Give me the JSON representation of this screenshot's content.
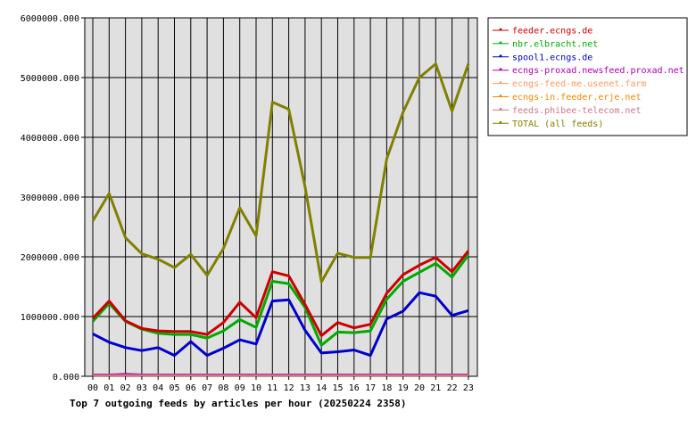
{
  "chart_data": {
    "type": "line",
    "title": "Top 7 outgoing feeds by articles per hour (20250224 2358)",
    "xlabel": "",
    "ylabel": "",
    "categories": [
      "00",
      "01",
      "02",
      "03",
      "04",
      "05",
      "06",
      "07",
      "08",
      "09",
      "10",
      "11",
      "12",
      "13",
      "14",
      "15",
      "16",
      "17",
      "18",
      "19",
      "20",
      "21",
      "22",
      "23"
    ],
    "y_ticks": [
      "0.000",
      "1000000.000",
      "2000000.000",
      "3000000.000",
      "4000000.000",
      "5000000.000",
      "6000000.000"
    ],
    "ylim": [
      0,
      6000000
    ],
    "grid": true,
    "legend_position": "top-right",
    "plot_background": "#e0e0e0",
    "series": [
      {
        "name": "feeder.ecngs.de",
        "color": "#cc0000",
        "values": [
          970000,
          1260000,
          930000,
          800000,
          760000,
          750000,
          750000,
          700000,
          900000,
          1240000,
          980000,
          1750000,
          1680000,
          1200000,
          680000,
          900000,
          810000,
          870000,
          1390000,
          1700000,
          1860000,
          1990000,
          1750000,
          2100000
        ]
      },
      {
        "name": "nbr.elbracht.net",
        "color": "#00aa00",
        "values": [
          920000,
          1220000,
          920000,
          790000,
          720000,
          700000,
          700000,
          640000,
          760000,
          950000,
          820000,
          1590000,
          1550000,
          1150000,
          520000,
          740000,
          730000,
          760000,
          1290000,
          1590000,
          1740000,
          1890000,
          1660000,
          2030000
        ]
      },
      {
        "name": "spool1.ecngs.de",
        "color": "#0000cc",
        "values": [
          710000,
          570000,
          480000,
          430000,
          480000,
          350000,
          580000,
          350000,
          470000,
          610000,
          540000,
          1260000,
          1280000,
          770000,
          390000,
          410000,
          440000,
          350000,
          960000,
          1090000,
          1400000,
          1340000,
          1020000,
          1100000
        ]
      },
      {
        "name": "ecngs-proxad.newsfeed.proxad.net",
        "color": "#aa00aa",
        "values": [
          30000,
          30000,
          40000,
          30000,
          30000,
          30000,
          30000,
          30000,
          30000,
          30000,
          30000,
          30000,
          30000,
          30000,
          30000,
          30000,
          30000,
          30000,
          30000,
          30000,
          30000,
          30000,
          30000,
          30000
        ]
      },
      {
        "name": "ecngs-feed-me.usenet.farm",
        "color": "#ff9966",
        "values": [
          20000,
          20000,
          20000,
          20000,
          20000,
          20000,
          20000,
          20000,
          20000,
          20000,
          20000,
          20000,
          20000,
          20000,
          20000,
          20000,
          20000,
          20000,
          20000,
          20000,
          20000,
          20000,
          20000,
          20000
        ]
      },
      {
        "name": "ecngs-in.feeder.erje.net",
        "color": "#ee8800",
        "values": [
          10000,
          10000,
          10000,
          10000,
          10000,
          10000,
          10000,
          10000,
          10000,
          10000,
          10000,
          10000,
          10000,
          10000,
          10000,
          10000,
          10000,
          10000,
          10000,
          10000,
          10000,
          10000,
          10000,
          10000
        ]
      },
      {
        "name": "feeds.phibee-telecom.net",
        "color": "#cc7788",
        "values": [
          15000,
          15000,
          15000,
          15000,
          15000,
          15000,
          15000,
          15000,
          15000,
          15000,
          15000,
          15000,
          15000,
          15000,
          15000,
          15000,
          15000,
          15000,
          15000,
          15000,
          15000,
          15000,
          15000,
          15000
        ]
      },
      {
        "name": "TOTAL (all feeds)",
        "color": "#808000",
        "values": [
          2600000,
          3060000,
          2320000,
          2050000,
          1960000,
          1820000,
          2040000,
          1690000,
          2140000,
          2820000,
          2350000,
          4590000,
          4470000,
          3170000,
          1580000,
          2060000,
          1990000,
          1990000,
          3640000,
          4420000,
          5000000,
          5230000,
          4440000,
          5230000
        ]
      }
    ]
  }
}
